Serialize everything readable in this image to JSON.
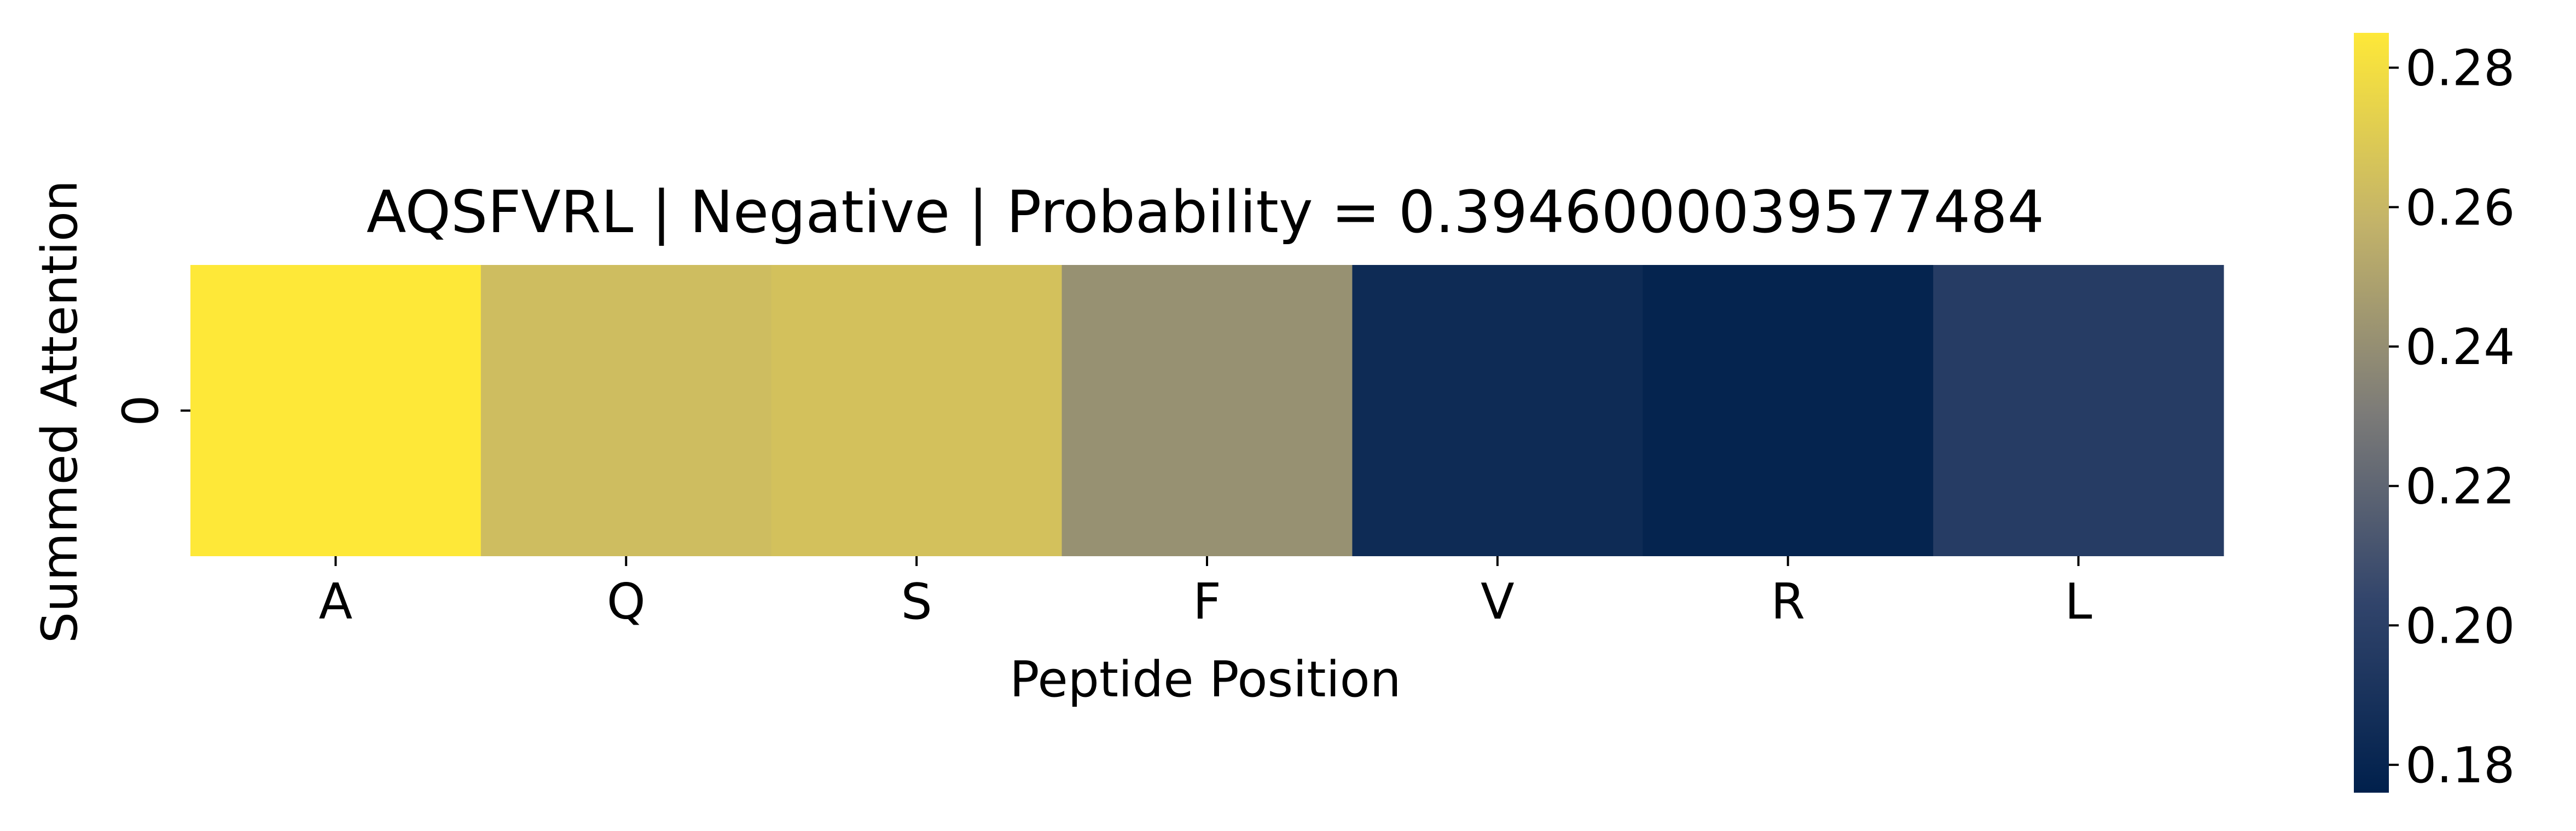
{
  "chart_data": {
    "type": "heatmap",
    "title": "AQSFVRL | Negative | Probability = 0.3946000039577484",
    "xlabel": "Peptide Position",
    "ylabel": "Summed Attention",
    "x_categories": [
      "A",
      "Q",
      "S",
      "F",
      "V",
      "R",
      "L"
    ],
    "y_categories": [
      "0"
    ],
    "values": [
      [
        0.285,
        0.263,
        0.265,
        0.241,
        0.184,
        0.179,
        0.197
      ]
    ],
    "colormap": "cividis",
    "colorbar": {
      "min": 0.176,
      "max": 0.285,
      "ticks": [
        "0.18",
        "0.20",
        "0.22",
        "0.24",
        "0.26",
        "0.28"
      ]
    }
  }
}
